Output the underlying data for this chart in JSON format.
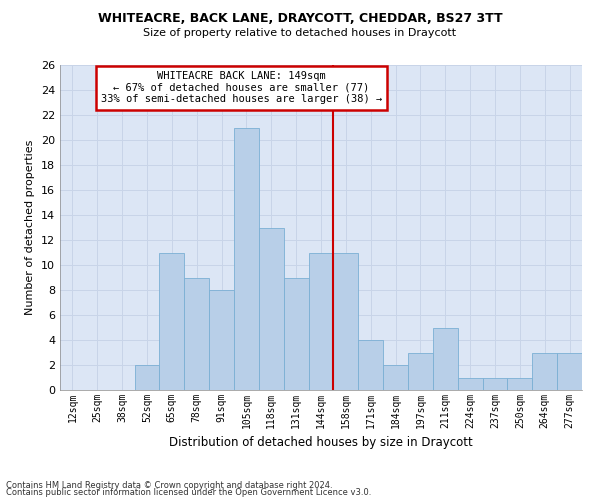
{
  "title1": "WHITEACRE, BACK LANE, DRAYCOTT, CHEDDAR, BS27 3TT",
  "title2": "Size of property relative to detached houses in Draycott",
  "xlabel": "Distribution of detached houses by size in Draycott",
  "ylabel": "Number of detached properties",
  "categories": [
    "12sqm",
    "25sqm",
    "38sqm",
    "52sqm",
    "65sqm",
    "78sqm",
    "91sqm",
    "105sqm",
    "118sqm",
    "131sqm",
    "144sqm",
    "158sqm",
    "171sqm",
    "184sqm",
    "197sqm",
    "211sqm",
    "224sqm",
    "237sqm",
    "250sqm",
    "264sqm",
    "277sqm"
  ],
  "values": [
    0,
    0,
    0,
    2,
    11,
    9,
    8,
    21,
    13,
    9,
    11,
    11,
    4,
    2,
    3,
    5,
    1,
    1,
    1,
    3,
    3
  ],
  "bar_color": "#b8cfe8",
  "bar_edgecolor": "#7bafd4",
  "bar_linewidth": 0.6,
  "vline_x": 10.5,
  "vline_color": "#cc0000",
  "annotation_title": "WHITEACRE BACK LANE: 149sqm",
  "annotation_line1": "← 67% of detached houses are smaller (77)",
  "annotation_line2": "33% of semi-detached houses are larger (38) →",
  "annotation_box_edgecolor": "#cc0000",
  "ylim": [
    0,
    26
  ],
  "yticks": [
    0,
    2,
    4,
    6,
    8,
    10,
    12,
    14,
    16,
    18,
    20,
    22,
    24,
    26
  ],
  "grid_color": "#c8d4e8",
  "bg_color": "#dce6f5",
  "footnote1": "Contains HM Land Registry data © Crown copyright and database right 2024.",
  "footnote2": "Contains public sector information licensed under the Open Government Licence v3.0."
}
